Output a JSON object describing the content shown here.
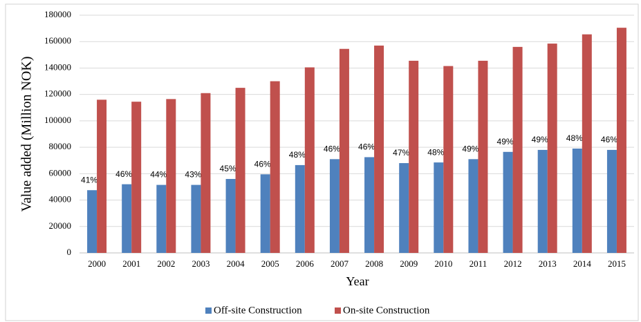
{
  "chart_data": {
    "type": "bar",
    "x_label": "Year",
    "y_label": "Value added (Million NOK)",
    "categories": [
      "2000",
      "2001",
      "2002",
      "2003",
      "2004",
      "2005",
      "2006",
      "2007",
      "2008",
      "2009",
      "2010",
      "2011",
      "2012",
      "2013",
      "2014",
      "2015"
    ],
    "series": [
      {
        "name": "Off-site Construction",
        "color": "#4f81bd",
        "values": [
          47500,
          52000,
          51500,
          51500,
          56000,
          59500,
          66500,
          71000,
          72500,
          68000,
          68500,
          71000,
          76500,
          78000,
          79000,
          78000
        ]
      },
      {
        "name": "On-site Construction",
        "color": "#c0504d",
        "values": [
          116000,
          114500,
          116500,
          121000,
          125000,
          130000,
          140500,
          154500,
          157000,
          145500,
          141500,
          145500,
          156000,
          158500,
          165500,
          170500
        ]
      }
    ],
    "annotations": [
      "41%",
      "46%",
      "44%",
      "43%",
      "45%",
      "46%",
      "48%",
      "46%",
      "46%",
      "47%",
      "48%",
      "49%",
      "49%",
      "49%",
      "48%",
      "46%"
    ],
    "ylim": [
      0,
      180000
    ],
    "yticks": [
      0,
      20000,
      40000,
      60000,
      80000,
      100000,
      120000,
      140000,
      160000,
      180000
    ],
    "grid": true,
    "legend": "bottom"
  }
}
